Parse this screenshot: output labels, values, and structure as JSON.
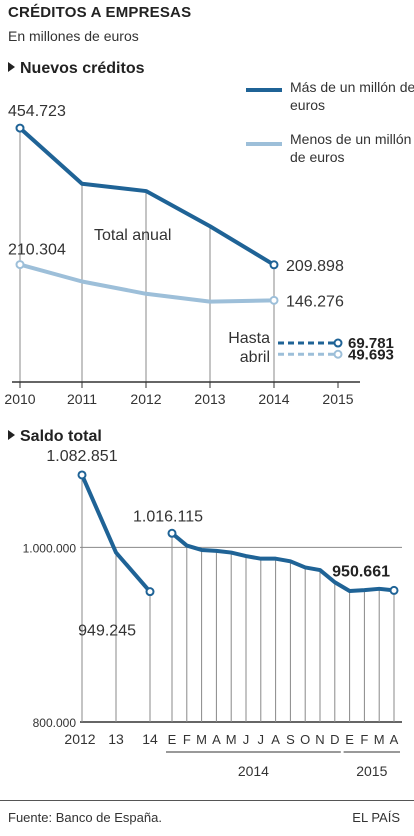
{
  "header": {
    "title": "CRÉDITOS A EMPRESAS",
    "subtitle": "En millones de euros"
  },
  "colors": {
    "dark_series": "#1f6396",
    "light_series": "#9dbfd9",
    "grid": "#888888",
    "axis": "#333333"
  },
  "footer": {
    "source": "Fuente: Banco de España.",
    "credit": "EL PAÍS"
  },
  "chart_data": [
    {
      "type": "line",
      "section_title": "Nuevos créditos",
      "categories": [
        "2010",
        "2011",
        "2012",
        "2013",
        "2014",
        "2015"
      ],
      "ylim": [
        0,
        480000
      ],
      "annotations": [
        "Total anual",
        "Hasta abril"
      ],
      "series": [
        {
          "name": "Más de un millón de euros",
          "color": "#1f6396",
          "x": [
            "2010",
            "2011",
            "2012",
            "2013",
            "2014"
          ],
          "values": [
            454723,
            355000,
            342000,
            279000,
            209898
          ],
          "labels": {
            "first": "454.723",
            "last": "209.898"
          },
          "partial_2015": {
            "value": 69781,
            "label": "69.781"
          }
        },
        {
          "name": "Menos de un millón de euros",
          "color": "#9dbfd9",
          "x": [
            "2010",
            "2011",
            "2012",
            "2013",
            "2014"
          ],
          "values": [
            210304,
            180000,
            158000,
            144000,
            146276
          ],
          "labels": {
            "first": "210.304",
            "last": "146.276"
          },
          "partial_2015": {
            "value": 49693,
            "label": "49.693"
          }
        }
      ]
    },
    {
      "type": "line",
      "section_title": "Saldo total",
      "ylim": [
        800000,
        1100000
      ],
      "ytick_labels": [
        "1.000.000",
        "800.000"
      ],
      "yticks": [
        1000000,
        800000
      ],
      "annual": {
        "x_labels": [
          "2012",
          "13",
          "14"
        ],
        "values": [
          1082851,
          994000,
          949245
        ],
        "labels": {
          "first": "1.082.851",
          "last": "949.245"
        }
      },
      "monthly": {
        "x_labels": [
          "E",
          "F",
          "M",
          "A",
          "M",
          "J",
          "J",
          "A",
          "S",
          "O",
          "N",
          "D",
          "E",
          "F",
          "M",
          "A"
        ],
        "year_groups": [
          "2014",
          "2015"
        ],
        "values": [
          1016115,
          1002000,
          997000,
          996000,
          994000,
          990000,
          987000,
          987000,
          984000,
          977000,
          974000,
          960000,
          950000,
          951000,
          952500,
          950661
        ],
        "labels": {
          "first": "1.016.115",
          "last": "950.661"
        }
      }
    }
  ]
}
